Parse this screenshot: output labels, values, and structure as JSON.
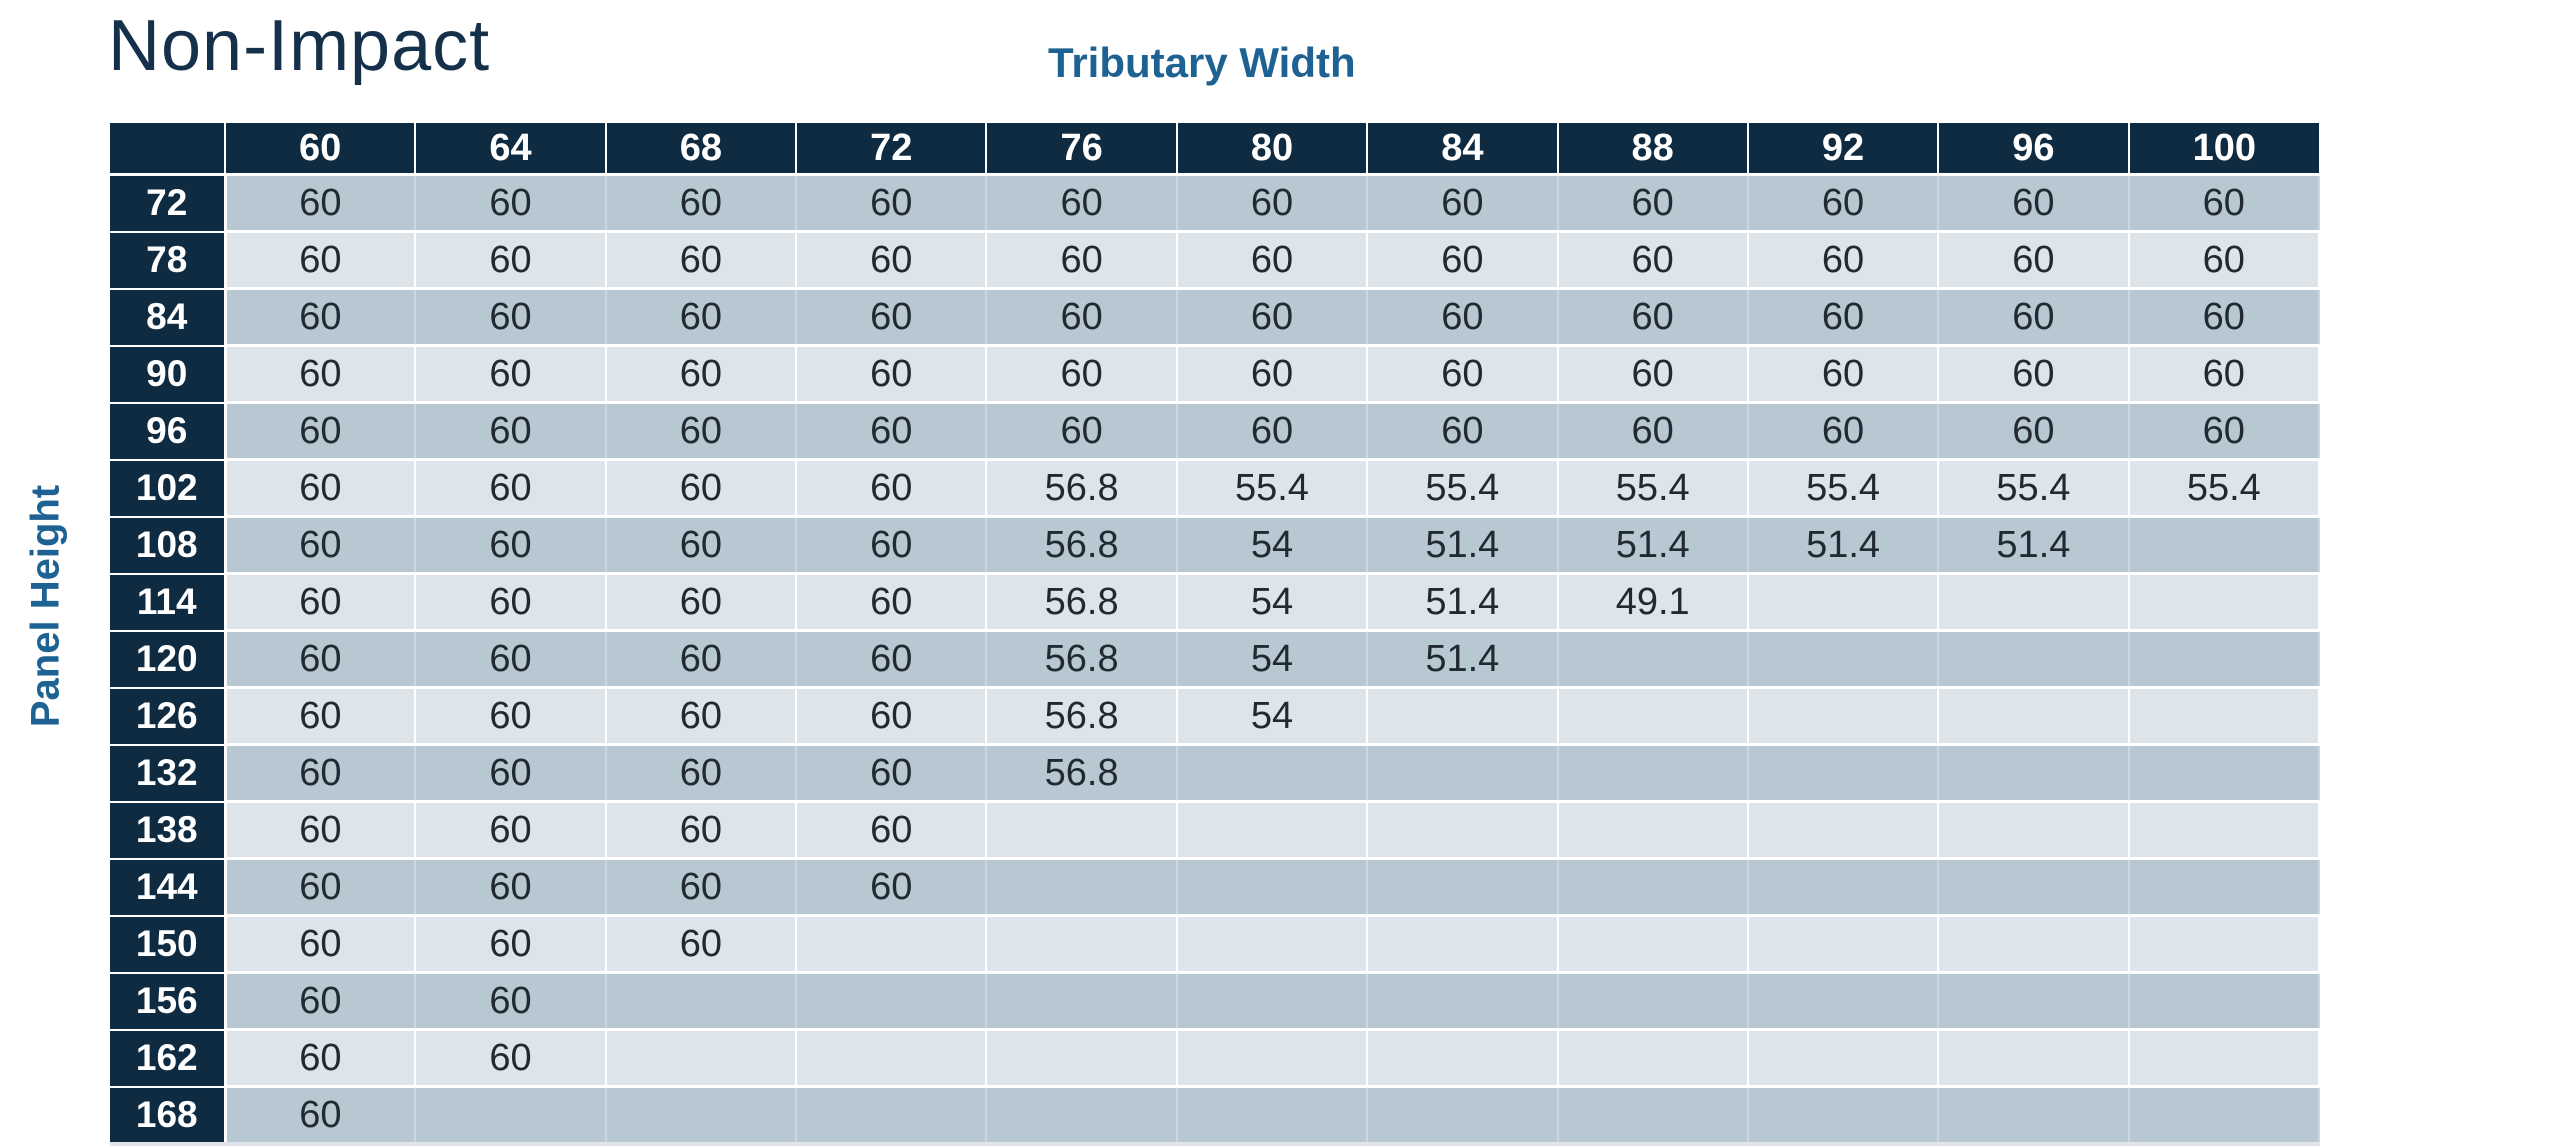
{
  "page": {
    "title": "Non-Impact",
    "column_axis_label": "Tributary Width",
    "row_axis_label": "Panel Height"
  },
  "colors": {
    "header_bg": "#0e2b41",
    "row_dark": "#b7c8d2",
    "row_light": "#dde4ea",
    "title_text": "#14304a",
    "axis_label_text": "#1d6292",
    "cell_text": "#222a31",
    "header_text": "#ffffff"
  },
  "table": {
    "col_headers": [
      "60",
      "64",
      "68",
      "72",
      "76",
      "80",
      "84",
      "88",
      "92",
      "96",
      "100"
    ],
    "rows": [
      {
        "height": "72",
        "values": [
          "60",
          "60",
          "60",
          "60",
          "60",
          "60",
          "60",
          "60",
          "60",
          "60",
          "60"
        ]
      },
      {
        "height": "78",
        "values": [
          "60",
          "60",
          "60",
          "60",
          "60",
          "60",
          "60",
          "60",
          "60",
          "60",
          "60"
        ]
      },
      {
        "height": "84",
        "values": [
          "60",
          "60",
          "60",
          "60",
          "60",
          "60",
          "60",
          "60",
          "60",
          "60",
          "60"
        ]
      },
      {
        "height": "90",
        "values": [
          "60",
          "60",
          "60",
          "60",
          "60",
          "60",
          "60",
          "60",
          "60",
          "60",
          "60"
        ]
      },
      {
        "height": "96",
        "values": [
          "60",
          "60",
          "60",
          "60",
          "60",
          "60",
          "60",
          "60",
          "60",
          "60",
          "60"
        ]
      },
      {
        "height": "102",
        "values": [
          "60",
          "60",
          "60",
          "60",
          "56.8",
          "55.4",
          "55.4",
          "55.4",
          "55.4",
          "55.4",
          "55.4"
        ]
      },
      {
        "height": "108",
        "values": [
          "60",
          "60",
          "60",
          "60",
          "56.8",
          "54",
          "51.4",
          "51.4",
          "51.4",
          "51.4",
          ""
        ]
      },
      {
        "height": "114",
        "values": [
          "60",
          "60",
          "60",
          "60",
          "56.8",
          "54",
          "51.4",
          "49.1",
          "",
          "",
          ""
        ]
      },
      {
        "height": "120",
        "values": [
          "60",
          "60",
          "60",
          "60",
          "56.8",
          "54",
          "51.4",
          "",
          "",
          "",
          ""
        ]
      },
      {
        "height": "126",
        "values": [
          "60",
          "60",
          "60",
          "60",
          "56.8",
          "54",
          "",
          "",
          "",
          "",
          ""
        ]
      },
      {
        "height": "132",
        "values": [
          "60",
          "60",
          "60",
          "60",
          "56.8",
          "",
          "",
          "",
          "",
          "",
          ""
        ]
      },
      {
        "height": "138",
        "values": [
          "60",
          "60",
          "60",
          "60",
          "",
          "",
          "",
          "",
          "",
          "",
          ""
        ]
      },
      {
        "height": "144",
        "values": [
          "60",
          "60",
          "60",
          "60",
          "",
          "",
          "",
          "",
          "",
          "",
          ""
        ]
      },
      {
        "height": "150",
        "values": [
          "60",
          "60",
          "60",
          "",
          "",
          "",
          "",
          "",
          "",
          "",
          ""
        ]
      },
      {
        "height": "156",
        "values": [
          "60",
          "60",
          "",
          "",
          "",
          "",
          "",
          "",
          "",
          "",
          ""
        ]
      },
      {
        "height": "162",
        "values": [
          "60",
          "60",
          "",
          "",
          "",
          "",
          "",
          "",
          "",
          "",
          ""
        ]
      },
      {
        "height": "168",
        "values": [
          "60",
          "",
          "",
          "",
          "",
          "",
          "",
          "",
          "",
          "",
          ""
        ]
      }
    ]
  }
}
